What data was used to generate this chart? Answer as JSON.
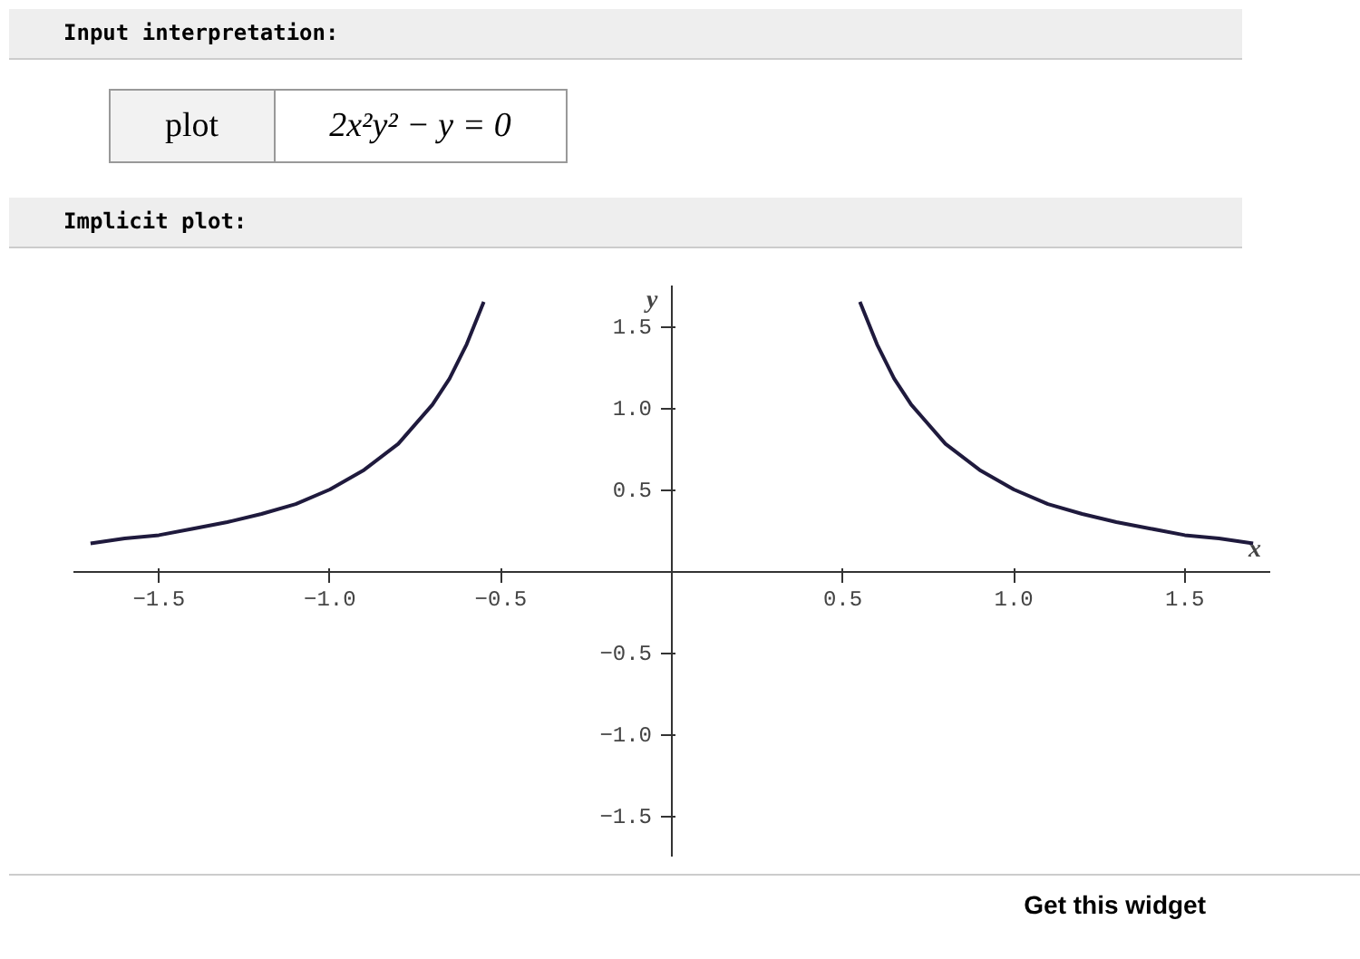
{
  "chart_data": {
    "type": "line",
    "title": "Implicit plot:",
    "annotations": [
      "Input interpretation:",
      "plot",
      "2x²y² − y = 0",
      "Get this widget"
    ],
    "xlabel": "x",
    "ylabel": "y",
    "series": [
      {
        "color": "#1f1a3d",
        "x": [
          -1.7,
          -1.6,
          -1.5,
          -1.4,
          -1.3,
          -1.2,
          -1.1,
          -1.0,
          -0.9,
          -0.8,
          -0.7,
          -0.65,
          -0.6,
          -0.55
        ],
        "values": [
          0.17,
          0.2,
          0.22,
          0.26,
          0.3,
          0.35,
          0.41,
          0.5,
          0.62,
          0.78,
          1.02,
          1.18,
          1.39,
          1.65
        ]
      },
      {
        "color": "#1f1a3d",
        "x": [
          0.55,
          0.6,
          0.65,
          0.7,
          0.8,
          0.9,
          1.0,
          1.1,
          1.2,
          1.3,
          1.4,
          1.5,
          1.6,
          1.7
        ],
        "values": [
          1.65,
          1.39,
          1.18,
          1.02,
          0.78,
          0.62,
          0.5,
          0.41,
          0.35,
          0.3,
          0.26,
          0.22,
          0.2,
          0.17
        ]
      }
    ],
    "xlim": [
      -1.75,
      1.75
    ],
    "ylim": [
      -1.75,
      1.75
    ],
    "xticks": [
      {
        "value": -1.5,
        "label": "−1.5"
      },
      {
        "value": -1.0,
        "label": "−1.0"
      },
      {
        "value": -0.5,
        "label": "−0.5"
      },
      0.5,
      {
        "value": 1.0,
        "label": "1.0"
      },
      1.5
    ],
    "yticks": [
      {
        "value": -1.5,
        "label": "−1.5"
      },
      {
        "value": -1.0,
        "label": "−1.0"
      },
      {
        "value": -0.5,
        "label": "−0.5"
      },
      0.5,
      {
        "value": 1.0,
        "label": "1.0"
      },
      1.5
    ],
    "grid": false,
    "marker": "none",
    "line_style": "solid"
  }
}
